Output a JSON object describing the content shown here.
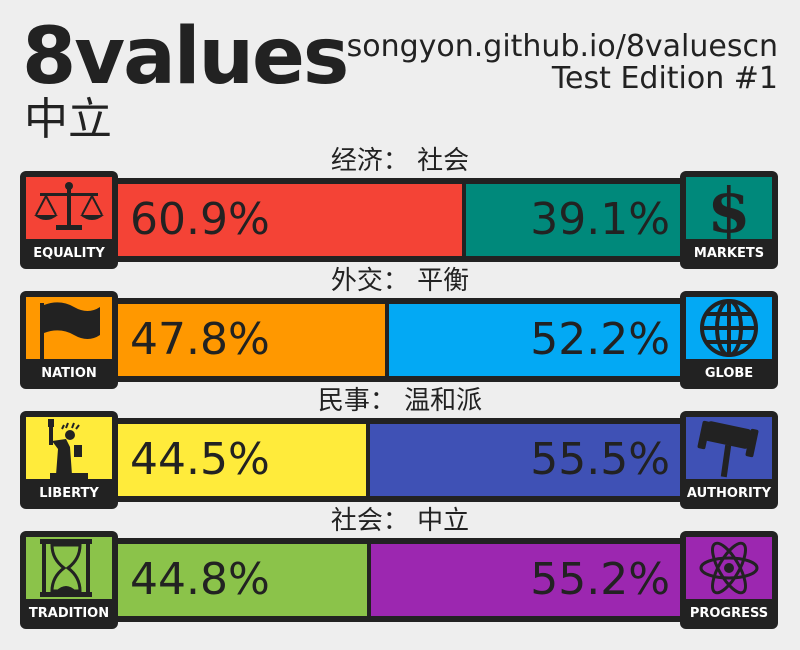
{
  "header": {
    "title": "8values",
    "ideology": "中立",
    "site": "songyon.github.io/8valuescn",
    "edition": "Test Edition #1"
  },
  "axes": [
    {
      "label": "经济： 社会",
      "left": {
        "name": "EQUALITY",
        "percent": 60.9,
        "text": "60.9%",
        "color": "#f44336",
        "icon": "scales-icon"
      },
      "right": {
        "name": "MARKETS",
        "percent": 39.1,
        "text": "39.1%",
        "color": "#00897b",
        "icon": "dollar-icon"
      }
    },
    {
      "label": "外交： 平衡",
      "left": {
        "name": "NATION",
        "percent": 47.8,
        "text": "47.8%",
        "color": "#ff9800",
        "icon": "flag-icon"
      },
      "right": {
        "name": "GLOBE",
        "percent": 52.2,
        "text": "52.2%",
        "color": "#03a9f4",
        "icon": "globe-icon"
      }
    },
    {
      "label": "民事： 温和派",
      "left": {
        "name": "LIBERTY",
        "percent": 44.5,
        "text": "44.5%",
        "color": "#ffeb3b",
        "icon": "statue-of-liberty-icon"
      },
      "right": {
        "name": "AUTHORITY",
        "percent": 55.5,
        "text": "55.5%",
        "color": "#3f51b5",
        "icon": "gavel-icon"
      }
    },
    {
      "label": "社会： 中立",
      "left": {
        "name": "TRADITION",
        "percent": 44.8,
        "text": "44.8%",
        "color": "#8bc34a",
        "icon": "hourglass-icon"
      },
      "right": {
        "name": "PROGRESS",
        "percent": 55.2,
        "text": "55.2%",
        "color": "#9c27b0",
        "icon": "atom-icon"
      }
    }
  ]
}
